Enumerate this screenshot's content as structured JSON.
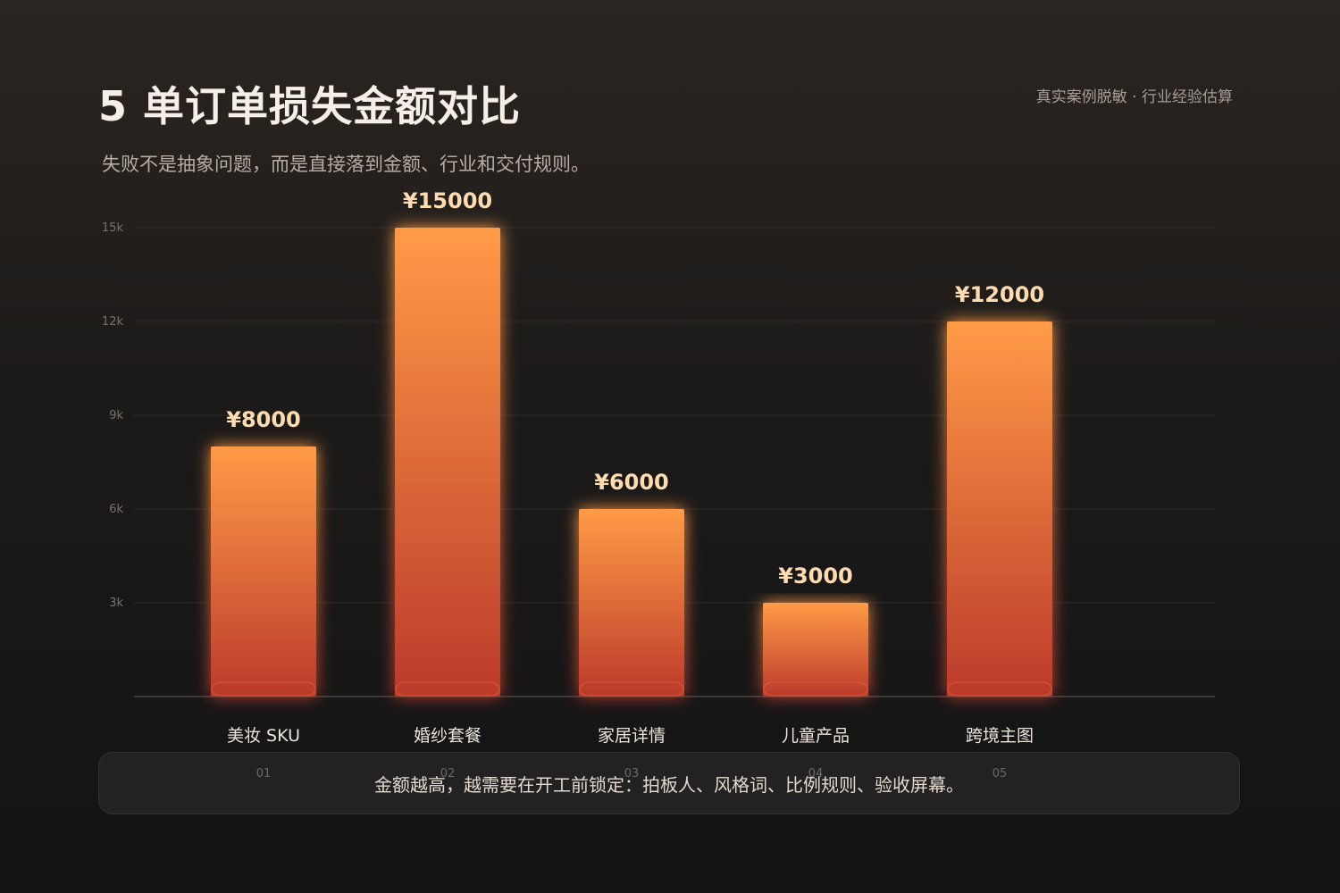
{
  "header": {
    "title": "5 单订单损失金额对比",
    "subtitle": "失败不是抽象问题，而是直接落到金额、行业和交付规则。",
    "source": "真实案例脱敏 · 行业经验估算"
  },
  "chart_data": {
    "type": "bar",
    "categories": [
      "美妆 SKU",
      "婚纱套餐",
      "家居详情",
      "儿童产品",
      "跨境主图"
    ],
    "indices": [
      "01",
      "02",
      "03",
      "04",
      "05"
    ],
    "values": [
      8000,
      15000,
      6000,
      3000,
      12000
    ],
    "value_labels": [
      "¥8000",
      "¥15000",
      "¥6000",
      "¥3000",
      "¥12000"
    ],
    "ylim": [
      0,
      15000
    ],
    "yticks": [
      3000,
      6000,
      9000,
      12000,
      15000
    ],
    "ytick_labels": [
      "3k",
      "6k",
      "9k",
      "12k",
      "15k"
    ],
    "grid": true,
    "colors": {
      "bar_top": "#ff9b47",
      "bar_bottom": "#bb3a2b",
      "value_label": "#ffdcb0",
      "gridline": "#2f2c2a",
      "axis": "#4a4643"
    }
  },
  "footer": {
    "note": "金额越高，越需要在开工前锁定：拍板人、风格词、比例规则、验收屏幕。"
  }
}
